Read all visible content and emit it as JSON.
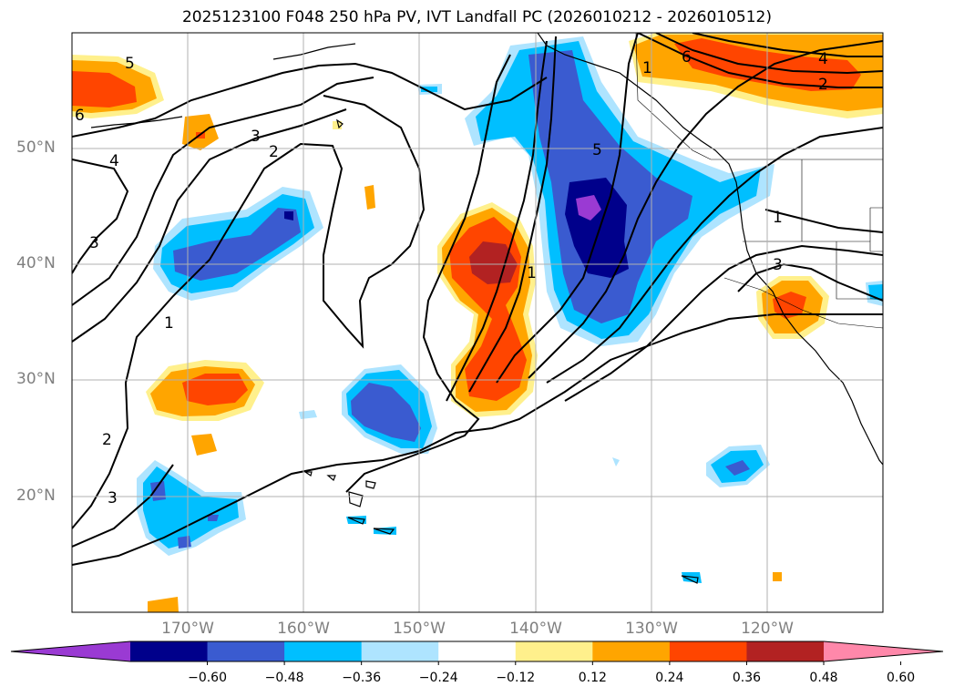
{
  "title": "2025123100 F048 250 hPa PV, IVT Landfall PC (2026010212 - 2026010512)",
  "lat_labels": [
    "50°N",
    "40°N",
    "30°N",
    "20°N"
  ],
  "lon_labels": [
    "170°W",
    "160°W",
    "150°W",
    "140°W",
    "130°W",
    "120°W"
  ],
  "contour_labels": [
    "5",
    "6",
    "3",
    "2",
    "4",
    "3",
    "1",
    "2",
    "3",
    "5",
    "1",
    "1",
    "6",
    "4",
    "2",
    "1",
    "3"
  ],
  "colorbar": {
    "ticks": [
      "−0.60",
      "−0.48",
      "−0.36",
      "−0.24",
      "−0.12",
      "0.12",
      "0.24",
      "0.36",
      "0.48",
      "0.60"
    ],
    "colors": [
      "#9a3ad3",
      "#00008b",
      "#3a5bd0",
      "#00bfff",
      "#aee4ff",
      "#ffffff",
      "#fff08c",
      "#ffa500",
      "#ff4500",
      "#b22222",
      "#ff88aa"
    ]
  }
}
